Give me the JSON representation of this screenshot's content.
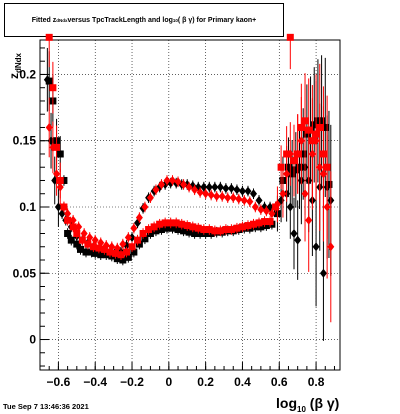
{
  "title": {
    "text_before": "Fitted  z",
    "z_subscript": "dNdx",
    "text_middle": "  versus TpcTrackLength and log",
    "log_subscript": "10",
    "text_after": " ( β γ) for Primary kaon+"
  },
  "timestamp": "Tue Sep  7 13:46:36 2021",
  "chart_data": {
    "type": "scatter",
    "title": "Fitted z_dNdx versus TpcTrackLength and log10(βγ) for Primary kaon+",
    "xlabel": "log10 (β γ)",
    "ylabel": "z_dNdx",
    "xlim": [
      -0.7,
      0.93
    ],
    "ylim": [
      -0.023,
      0.226
    ],
    "grid": true,
    "x_ticks": [
      -0.6,
      -0.4,
      -0.2,
      0,
      0.2,
      0.4,
      0.6,
      0.8
    ],
    "x_tick_labels": [
      "−0.6",
      "−0.4",
      "−0.2",
      "0",
      "0.2",
      "0.4",
      "0.6",
      "0.8"
    ],
    "y_ticks": [
      0,
      0.05,
      0.1,
      0.15,
      0.2
    ],
    "y_tick_labels": [
      "0",
      "0.05",
      "0.1",
      "0.15",
      "0.2"
    ],
    "series": [
      {
        "color": "#000000",
        "marker": "square",
        "points": [
          [
            -0.65,
            0.195
          ],
          [
            -0.63,
            0.18
          ],
          [
            -0.61,
            0.15
          ],
          [
            -0.59,
            0.14
          ],
          [
            -0.57,
            0.12
          ],
          [
            -0.55,
            0.08
          ],
          [
            -0.53,
            0.075
          ],
          [
            -0.5,
            0.072
          ],
          [
            -0.48,
            0.068
          ],
          [
            -0.45,
            0.066
          ],
          [
            -0.42,
            0.066
          ],
          [
            -0.4,
            0.065
          ],
          [
            -0.37,
            0.064
          ],
          [
            -0.34,
            0.064
          ],
          [
            -0.31,
            0.063
          ],
          [
            -0.28,
            0.061
          ],
          [
            -0.25,
            0.06
          ],
          [
            -0.22,
            0.062
          ],
          [
            -0.19,
            0.066
          ],
          [
            -0.16,
            0.072
          ],
          [
            -0.13,
            0.076
          ],
          [
            -0.1,
            0.08
          ],
          [
            -0.07,
            0.082
          ],
          [
            -0.04,
            0.083
          ],
          [
            -0.01,
            0.084
          ],
          [
            0.02,
            0.084
          ],
          [
            0.05,
            0.083
          ],
          [
            0.08,
            0.082
          ],
          [
            0.11,
            0.081
          ],
          [
            0.14,
            0.08
          ],
          [
            0.17,
            0.08
          ],
          [
            0.2,
            0.08
          ],
          [
            0.23,
            0.08
          ],
          [
            0.26,
            0.081
          ],
          [
            0.29,
            0.081
          ],
          [
            0.32,
            0.082
          ],
          [
            0.35,
            0.082
          ],
          [
            0.38,
            0.083
          ],
          [
            0.41,
            0.084
          ],
          [
            0.44,
            0.084
          ],
          [
            0.47,
            0.085
          ],
          [
            0.5,
            0.085
          ],
          [
            0.53,
            0.086
          ],
          [
            0.56,
            0.087
          ],
          [
            0.59,
            0.095
          ],
          [
            0.62,
            0.12
          ],
          [
            0.65,
            0.13
          ],
          [
            0.67,
            0.125
          ],
          [
            0.69,
            0.128
          ],
          [
            0.71,
            0.13
          ],
          [
            0.73,
            0.14
          ],
          [
            0.75,
            0.155
          ],
          [
            0.77,
            0.158
          ],
          [
            0.79,
            0.162
          ],
          [
            0.81,
            0.165
          ],
          [
            0.83,
            0.165
          ],
          [
            0.85,
            0.16
          ],
          [
            0.87,
            0.117
          ]
        ]
      },
      {
        "color": "#000000",
        "marker": "diamond",
        "points": [
          [
            -0.66,
            0.196
          ],
          [
            -0.64,
            0.15
          ],
          [
            -0.62,
            0.12
          ],
          [
            -0.6,
            0.1
          ],
          [
            -0.58,
            0.095
          ],
          [
            -0.56,
            0.09
          ],
          [
            -0.53,
            0.085
          ],
          [
            -0.5,
            0.078
          ],
          [
            -0.47,
            0.075
          ],
          [
            -0.44,
            0.073
          ],
          [
            -0.41,
            0.07
          ],
          [
            -0.38,
            0.068
          ],
          [
            -0.35,
            0.067
          ],
          [
            -0.32,
            0.066
          ],
          [
            -0.29,
            0.066
          ],
          [
            -0.26,
            0.066
          ],
          [
            -0.23,
            0.071
          ],
          [
            -0.2,
            0.077
          ],
          [
            -0.17,
            0.088
          ],
          [
            -0.14,
            0.099
          ],
          [
            -0.11,
            0.107
          ],
          [
            -0.08,
            0.112
          ],
          [
            -0.05,
            0.115
          ],
          [
            -0.02,
            0.117
          ],
          [
            0.01,
            0.118
          ],
          [
            0.04,
            0.118
          ],
          [
            0.07,
            0.117
          ],
          [
            0.1,
            0.117
          ],
          [
            0.13,
            0.116
          ],
          [
            0.16,
            0.115
          ],
          [
            0.19,
            0.115
          ],
          [
            0.22,
            0.115
          ],
          [
            0.25,
            0.115
          ],
          [
            0.28,
            0.115
          ],
          [
            0.31,
            0.114
          ],
          [
            0.34,
            0.114
          ],
          [
            0.37,
            0.113
          ],
          [
            0.4,
            0.112
          ],
          [
            0.43,
            0.112
          ],
          [
            0.46,
            0.11
          ],
          [
            0.49,
            0.105
          ],
          [
            0.52,
            0.1
          ],
          [
            0.55,
            0.1
          ],
          [
            0.58,
            0.1
          ],
          [
            0.61,
            0.105
          ],
          [
            0.64,
            0.11
          ],
          [
            0.66,
            0.1
          ],
          [
            0.68,
            0.08
          ],
          [
            0.7,
            0.075
          ],
          [
            0.72,
            0.12
          ],
          [
            0.74,
            0.13
          ],
          [
            0.76,
            0.12
          ],
          [
            0.78,
            0.105
          ],
          [
            0.8,
            0.07
          ],
          [
            0.82,
            0.115
          ],
          [
            0.84,
            0.05
          ],
          [
            0.86,
            0.115
          ],
          [
            0.88,
            0.105
          ]
        ]
      },
      {
        "color": "#ff0000",
        "marker": "square",
        "points": [
          [
            -0.65,
            0.228
          ],
          [
            -0.63,
            0.19
          ],
          [
            -0.61,
            0.145
          ],
          [
            -0.59,
            0.12
          ],
          [
            -0.57,
            0.1
          ],
          [
            -0.55,
            0.09
          ],
          [
            -0.52,
            0.085
          ],
          [
            -0.5,
            0.08
          ],
          [
            -0.47,
            0.075
          ],
          [
            -0.44,
            0.072
          ],
          [
            -0.41,
            0.07
          ],
          [
            -0.38,
            0.069
          ],
          [
            -0.35,
            0.068
          ],
          [
            -0.32,
            0.066
          ],
          [
            -0.29,
            0.065
          ],
          [
            -0.26,
            0.064
          ],
          [
            -0.23,
            0.066
          ],
          [
            -0.2,
            0.07
          ],
          [
            -0.17,
            0.075
          ],
          [
            -0.14,
            0.08
          ],
          [
            -0.11,
            0.083
          ],
          [
            -0.08,
            0.085
          ],
          [
            -0.05,
            0.087
          ],
          [
            -0.02,
            0.088
          ],
          [
            0.01,
            0.088
          ],
          [
            0.04,
            0.088
          ],
          [
            0.07,
            0.087
          ],
          [
            0.1,
            0.086
          ],
          [
            0.13,
            0.085
          ],
          [
            0.16,
            0.084
          ],
          [
            0.19,
            0.083
          ],
          [
            0.22,
            0.083
          ],
          [
            0.25,
            0.082
          ],
          [
            0.28,
            0.082
          ],
          [
            0.31,
            0.083
          ],
          [
            0.34,
            0.083
          ],
          [
            0.37,
            0.084
          ],
          [
            0.4,
            0.085
          ],
          [
            0.43,
            0.086
          ],
          [
            0.46,
            0.087
          ],
          [
            0.49,
            0.088
          ],
          [
            0.52,
            0.089
          ],
          [
            0.55,
            0.089
          ],
          [
            0.58,
            0.1
          ],
          [
            0.61,
            0.13
          ],
          [
            0.64,
            0.14
          ],
          [
            0.66,
            0.228
          ],
          [
            0.68,
            0.135
          ],
          [
            0.7,
            0.14
          ],
          [
            0.72,
            0.16
          ],
          [
            0.74,
            0.165
          ],
          [
            0.76,
            0.158
          ],
          [
            0.78,
            0.15
          ],
          [
            0.8,
            0.155
          ],
          [
            0.82,
            0.16
          ],
          [
            0.84,
            0.14
          ],
          [
            0.86,
            0.13
          ]
        ]
      },
      {
        "color": "#ff0000",
        "marker": "diamond",
        "points": [
          [
            -0.65,
            0.16
          ],
          [
            -0.63,
            0.145
          ],
          [
            -0.61,
            0.125
          ],
          [
            -0.59,
            0.115
          ],
          [
            -0.57,
            0.1
          ],
          [
            -0.55,
            0.095
          ],
          [
            -0.52,
            0.09
          ],
          [
            -0.49,
            0.085
          ],
          [
            -0.46,
            0.08
          ],
          [
            -0.43,
            0.077
          ],
          [
            -0.4,
            0.075
          ],
          [
            -0.37,
            0.073
          ],
          [
            -0.34,
            0.071
          ],
          [
            -0.31,
            0.07
          ],
          [
            -0.28,
            0.069
          ],
          [
            -0.25,
            0.072
          ],
          [
            -0.22,
            0.077
          ],
          [
            -0.19,
            0.084
          ],
          [
            -0.16,
            0.092
          ],
          [
            -0.13,
            0.1
          ],
          [
            -0.1,
            0.107
          ],
          [
            -0.07,
            0.113
          ],
          [
            -0.04,
            0.117
          ],
          [
            -0.01,
            0.12
          ],
          [
            0.02,
            0.12
          ],
          [
            0.05,
            0.119
          ],
          [
            0.08,
            0.117
          ],
          [
            0.11,
            0.115
          ],
          [
            0.14,
            0.113
          ],
          [
            0.17,
            0.111
          ],
          [
            0.2,
            0.11
          ],
          [
            0.23,
            0.109
          ],
          [
            0.26,
            0.108
          ],
          [
            0.29,
            0.108
          ],
          [
            0.32,
            0.107
          ],
          [
            0.35,
            0.107
          ],
          [
            0.38,
            0.106
          ],
          [
            0.41,
            0.105
          ],
          [
            0.44,
            0.104
          ],
          [
            0.47,
            0.1
          ],
          [
            0.5,
            0.098
          ],
          [
            0.53,
            0.097
          ],
          [
            0.56,
            0.095
          ],
          [
            0.59,
            0.102
          ],
          [
            0.62,
            0.11
          ],
          [
            0.64,
            0.125
          ],
          [
            0.66,
            0.14
          ],
          [
            0.68,
            0.135
          ],
          [
            0.7,
            0.14
          ],
          [
            0.72,
            0.15
          ],
          [
            0.74,
            0.11
          ],
          [
            0.76,
            0.09
          ],
          [
            0.78,
            0.14
          ],
          [
            0.8,
            0.15
          ],
          [
            0.82,
            0.13
          ],
          [
            0.84,
            0.125
          ],
          [
            0.86,
            0.1
          ],
          [
            0.88,
            0.07
          ]
        ]
      }
    ]
  }
}
